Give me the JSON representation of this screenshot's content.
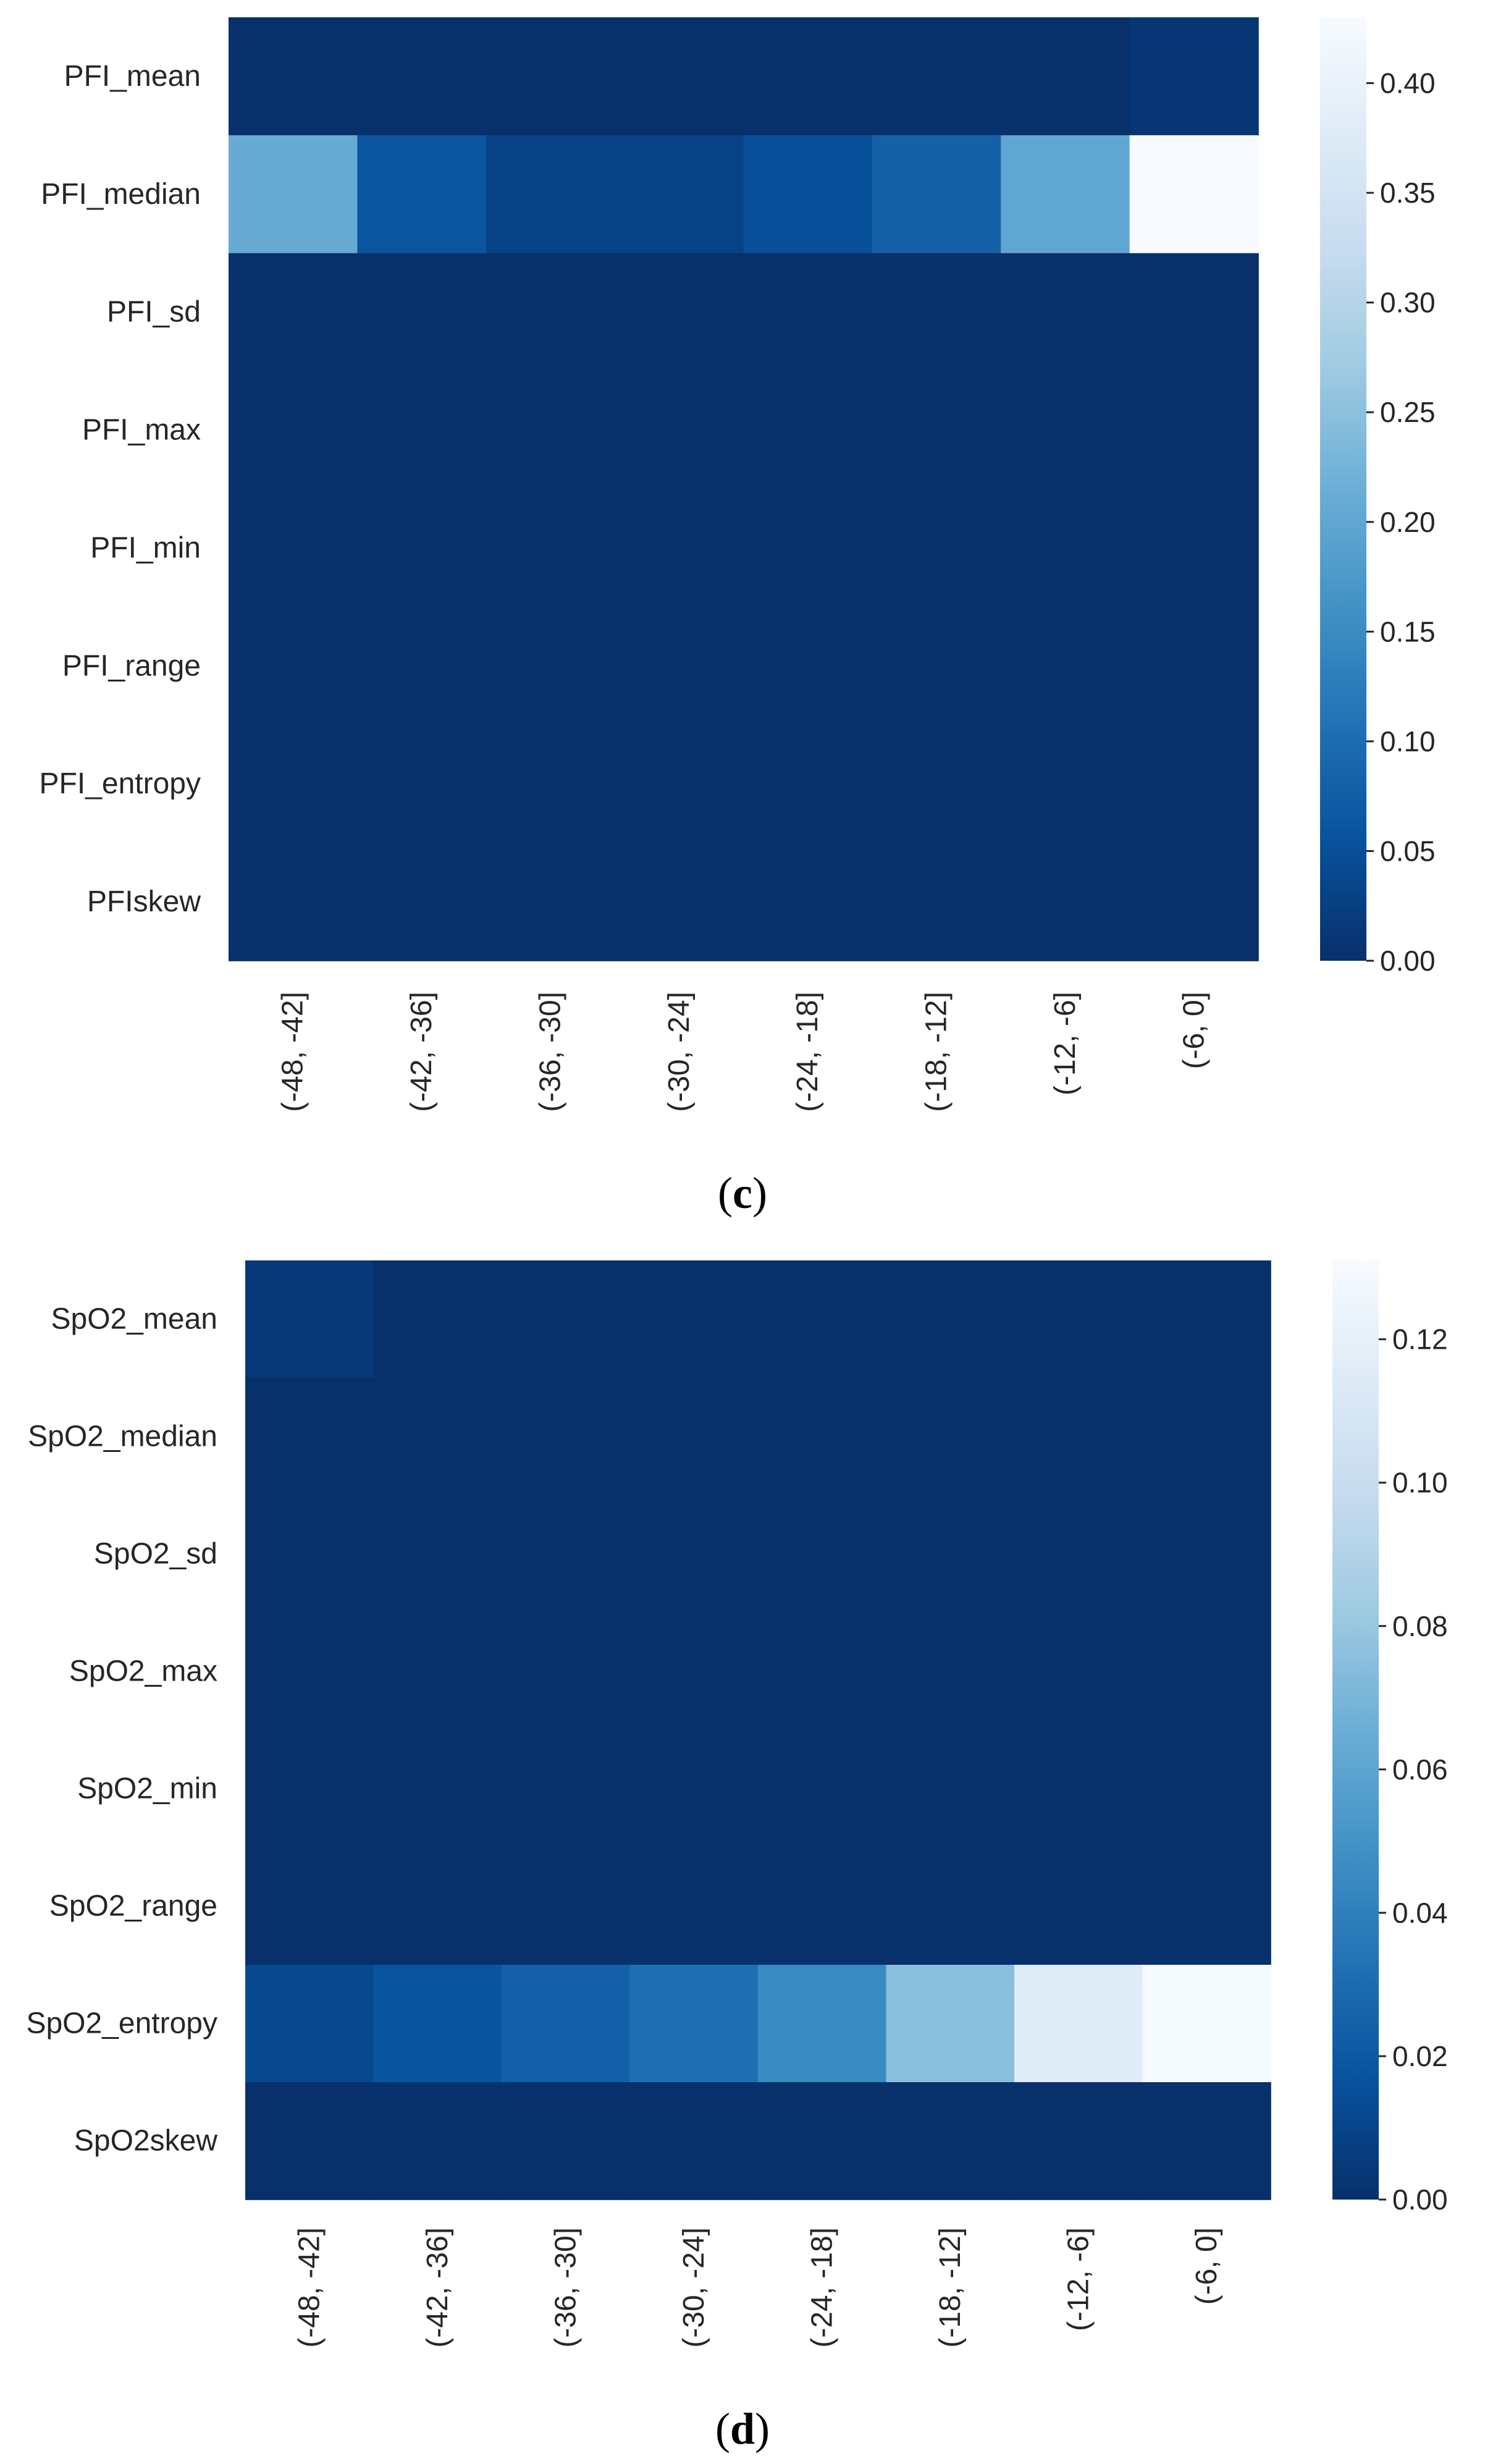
{
  "chart_data": [
    {
      "type": "heatmap",
      "panel_label": "(c)",
      "panel_letter": "c",
      "row_labels": [
        "PFI_mean",
        "PFI_median",
        "PFI_sd",
        "PFI_max",
        "PFI_min",
        "PFI_range",
        "PFI_entropy",
        "PFIskew"
      ],
      "column_labels": [
        "(-48, -42]",
        "(-42, -36]",
        "(-36, -30]",
        "(-30, -24]",
        "(-24, -18]",
        "(-18, -12]",
        "(-12, -6]",
        "(-6, 0]"
      ],
      "values": [
        [
          0.0,
          0.0,
          0.0,
          0.0,
          0.0,
          0.0,
          0.0,
          0.01
        ],
        [
          0.21,
          0.06,
          0.03,
          0.03,
          0.05,
          0.08,
          0.2,
          0.43
        ],
        [
          0,
          0,
          0,
          0,
          0,
          0,
          0,
          0
        ],
        [
          0,
          0,
          0,
          0,
          0,
          0,
          0,
          0
        ],
        [
          0,
          0,
          0,
          0,
          0,
          0,
          0,
          0
        ],
        [
          0,
          0,
          0,
          0,
          0,
          0,
          0,
          0
        ],
        [
          0,
          0,
          0,
          0,
          0,
          0,
          0,
          0
        ],
        [
          0,
          0,
          0,
          0,
          0,
          0,
          0,
          0
        ]
      ],
      "colormap": "Blues_r",
      "vmin": 0.0,
      "vmax": 0.43,
      "colorbar_ticks": [
        0.0,
        0.05,
        0.1,
        0.15,
        0.2,
        0.25,
        0.3,
        0.35,
        0.4
      ],
      "colorbar_tick_labels": [
        "0.00",
        "0.05",
        "0.10",
        "0.15",
        "0.20",
        "0.25",
        "0.30",
        "0.35",
        "0.40"
      ]
    },
    {
      "type": "heatmap",
      "panel_label": "(d)",
      "panel_letter": "d",
      "row_labels": [
        "SpO2_mean",
        "SpO2_median",
        "SpO2_sd",
        "SpO2_max",
        "SpO2_min",
        "SpO2_range",
        "SpO2_entropy",
        "SpO2skew"
      ],
      "column_labels": [
        "(-48, -42]",
        "(-42, -36]",
        "(-36, -30]",
        "(-30, -24]",
        "(-24, -18]",
        "(-18, -12]",
        "(-12, -6]",
        "(-6, 0]"
      ],
      "values": [
        [
          0.004,
          0.0,
          0.0,
          0.0,
          0.0,
          0.0,
          0.0,
          0.0
        ],
        [
          0,
          0,
          0,
          0,
          0,
          0,
          0,
          0
        ],
        [
          0,
          0,
          0,
          0,
          0,
          0,
          0,
          0
        ],
        [
          0,
          0,
          0,
          0,
          0,
          0,
          0,
          0
        ],
        [
          0,
          0,
          0,
          0,
          0,
          0,
          0,
          0
        ],
        [
          0,
          0,
          0,
          0,
          0,
          0,
          0,
          0
        ],
        [
          0.012,
          0.018,
          0.024,
          0.031,
          0.045,
          0.075,
          0.115,
          0.13
        ],
        [
          0,
          0,
          0,
          0,
          0,
          0,
          0,
          0
        ]
      ],
      "colormap": "Blues_r",
      "vmin": 0.0,
      "vmax": 0.131,
      "colorbar_ticks": [
        0.0,
        0.02,
        0.04,
        0.06,
        0.08,
        0.1,
        0.12
      ],
      "colorbar_tick_labels": [
        "0.00",
        "0.02",
        "0.04",
        "0.06",
        "0.08",
        "0.10",
        "0.12"
      ]
    }
  ]
}
